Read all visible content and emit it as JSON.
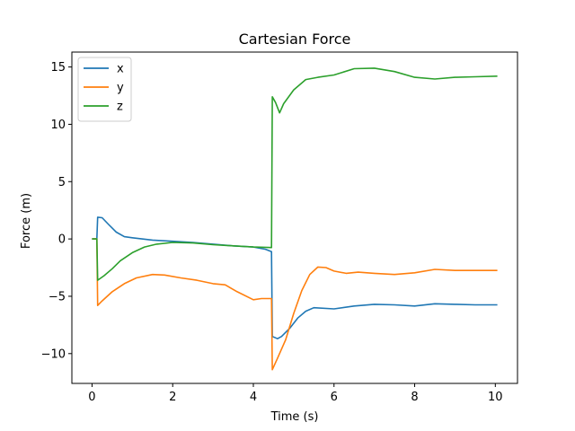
{
  "chart_data": {
    "type": "line",
    "title": "Cartesian Force",
    "xlabel": "Time (s)",
    "ylabel": "Force (m)",
    "xlim": [
      -0.5,
      10.55
    ],
    "ylim": [
      -12.6,
      16.3
    ],
    "xticks": [
      0,
      2,
      4,
      6,
      8,
      10
    ],
    "yticks": [
      -10,
      -5,
      0,
      5,
      10,
      15
    ],
    "ytick_labels": [
      "−10",
      "−5",
      "0",
      "5",
      "10",
      "15"
    ],
    "grid": false,
    "legend_position": "top-left",
    "series": [
      {
        "name": "x",
        "color": "#1f77b4",
        "points": [
          [
            0.0,
            0.0
          ],
          [
            0.12,
            0.0
          ],
          [
            0.14,
            1.9
          ],
          [
            0.25,
            1.85
          ],
          [
            0.4,
            1.3
          ],
          [
            0.6,
            0.6
          ],
          [
            0.8,
            0.2
          ],
          [
            1.0,
            0.1
          ],
          [
            1.5,
            -0.1
          ],
          [
            2.0,
            -0.2
          ],
          [
            2.5,
            -0.3
          ],
          [
            3.0,
            -0.45
          ],
          [
            3.5,
            -0.6
          ],
          [
            4.0,
            -0.7
          ],
          [
            4.3,
            -0.9
          ],
          [
            4.45,
            -1.1
          ],
          [
            4.47,
            -8.5
          ],
          [
            4.6,
            -8.7
          ],
          [
            4.7,
            -8.5
          ],
          [
            4.9,
            -7.8
          ],
          [
            5.1,
            -6.9
          ],
          [
            5.3,
            -6.3
          ],
          [
            5.5,
            -6.0
          ],
          [
            6.0,
            -6.1
          ],
          [
            6.5,
            -5.85
          ],
          [
            7.0,
            -5.7
          ],
          [
            7.5,
            -5.75
          ],
          [
            8.0,
            -5.85
          ],
          [
            8.5,
            -5.65
          ],
          [
            9.0,
            -5.7
          ],
          [
            9.5,
            -5.75
          ],
          [
            10.05,
            -5.75
          ]
        ]
      },
      {
        "name": "y",
        "color": "#ff7f0e",
        "points": [
          [
            0.0,
            0.0
          ],
          [
            0.12,
            0.0
          ],
          [
            0.14,
            -5.8
          ],
          [
            0.25,
            -5.4
          ],
          [
            0.5,
            -4.6
          ],
          [
            0.8,
            -3.9
          ],
          [
            1.1,
            -3.4
          ],
          [
            1.5,
            -3.1
          ],
          [
            1.8,
            -3.15
          ],
          [
            2.2,
            -3.4
          ],
          [
            2.6,
            -3.6
          ],
          [
            3.0,
            -3.9
          ],
          [
            3.3,
            -4.0
          ],
          [
            3.6,
            -4.6
          ],
          [
            4.0,
            -5.3
          ],
          [
            4.2,
            -5.2
          ],
          [
            4.45,
            -5.2
          ],
          [
            4.47,
            -11.4
          ],
          [
            4.6,
            -10.4
          ],
          [
            4.8,
            -8.8
          ],
          [
            5.0,
            -6.5
          ],
          [
            5.2,
            -4.5
          ],
          [
            5.4,
            -3.1
          ],
          [
            5.6,
            -2.45
          ],
          [
            5.8,
            -2.5
          ],
          [
            6.0,
            -2.8
          ],
          [
            6.3,
            -3.0
          ],
          [
            6.6,
            -2.9
          ],
          [
            7.0,
            -3.0
          ],
          [
            7.5,
            -3.1
          ],
          [
            8.0,
            -2.95
          ],
          [
            8.5,
            -2.65
          ],
          [
            9.0,
            -2.75
          ],
          [
            9.5,
            -2.75
          ],
          [
            10.05,
            -2.75
          ]
        ]
      },
      {
        "name": "z",
        "color": "#2ca02c",
        "points": [
          [
            0.0,
            0.0
          ],
          [
            0.12,
            0.0
          ],
          [
            0.14,
            -3.6
          ],
          [
            0.3,
            -3.2
          ],
          [
            0.5,
            -2.6
          ],
          [
            0.7,
            -1.9
          ],
          [
            1.0,
            -1.2
          ],
          [
            1.3,
            -0.7
          ],
          [
            1.6,
            -0.45
          ],
          [
            2.0,
            -0.3
          ],
          [
            2.5,
            -0.35
          ],
          [
            3.0,
            -0.5
          ],
          [
            3.5,
            -0.6
          ],
          [
            4.0,
            -0.7
          ],
          [
            4.45,
            -0.75
          ],
          [
            4.47,
            12.4
          ],
          [
            4.55,
            11.9
          ],
          [
            4.65,
            11.0
          ],
          [
            4.75,
            11.8
          ],
          [
            5.0,
            13.0
          ],
          [
            5.3,
            13.9
          ],
          [
            5.6,
            14.1
          ],
          [
            6.0,
            14.3
          ],
          [
            6.5,
            14.85
          ],
          [
            7.0,
            14.9
          ],
          [
            7.5,
            14.6
          ],
          [
            8.0,
            14.1
          ],
          [
            8.5,
            13.95
          ],
          [
            9.0,
            14.1
          ],
          [
            9.5,
            14.15
          ],
          [
            10.05,
            14.2
          ]
        ]
      }
    ]
  }
}
